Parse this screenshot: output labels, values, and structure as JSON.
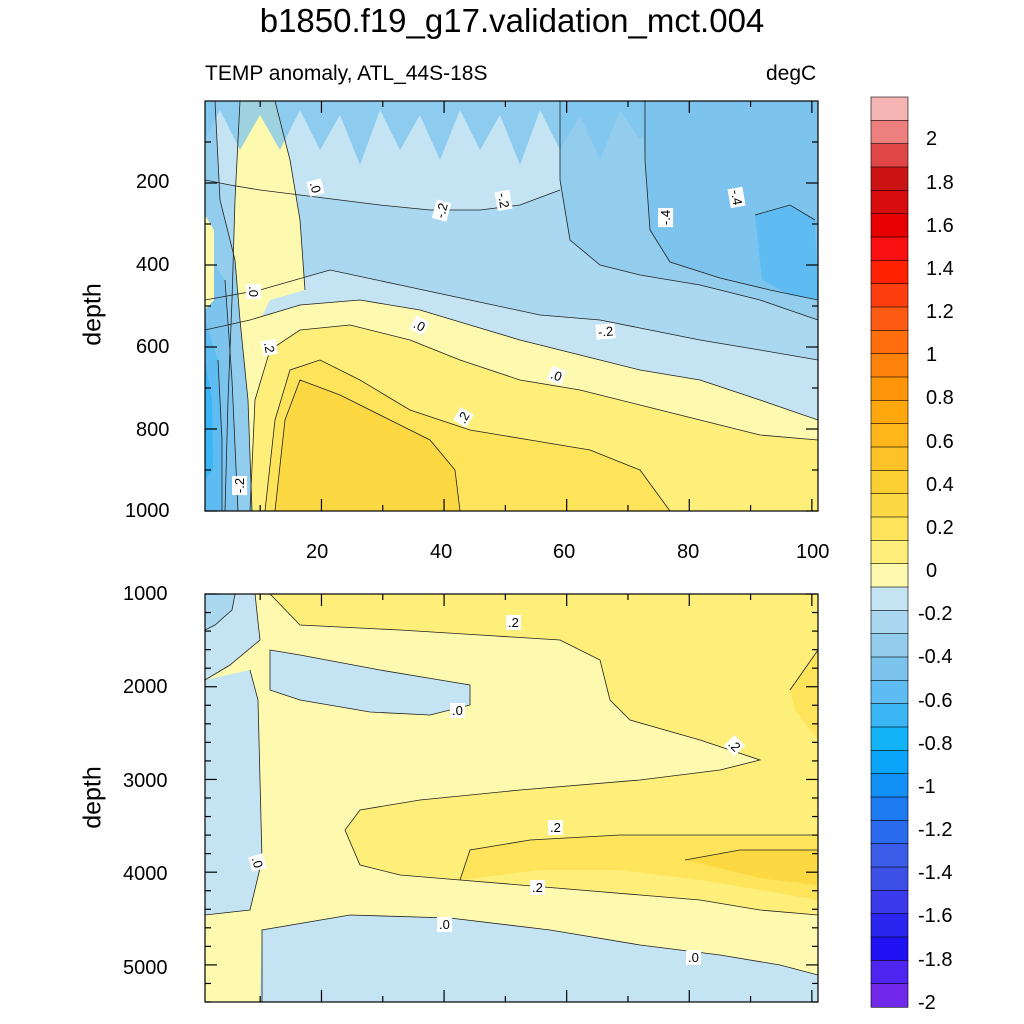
{
  "header": {
    "title": "b1850.f19_g17.validation_mct.004",
    "subtitle": "TEMP anomaly, ATL_44S-18S",
    "units": "degC"
  },
  "chart_data": {
    "type": "heatmap",
    "title": "b1850.f19_g17.validation_mct.004",
    "subtitle": "TEMP anomaly, ATL_44S-18S",
    "units": "degC",
    "panels": [
      {
        "name": "upper",
        "ylabel": "depth",
        "ylim": [
          0,
          1000
        ],
        "y_ticks": [
          "200",
          "400",
          "600",
          "800",
          "1000"
        ],
        "x_ticks": [
          "20",
          "40",
          "60",
          "80",
          "100"
        ],
        "xlim": [
          1,
          101
        ],
        "contour_labels": [
          ".0",
          "-.2",
          "-.2",
          "-.4",
          "-.4",
          ".0",
          ".2",
          ".0",
          "-.2",
          ".0",
          ".2",
          "-.2"
        ]
      },
      {
        "name": "lower",
        "ylabel": "depth",
        "ylim": [
          1000,
          5400
        ],
        "y_ticks": [
          "1000",
          "2000",
          "3000",
          "4000",
          "5000"
        ],
        "xlim": [
          1,
          101
        ],
        "contour_labels": [
          ".2",
          ".0",
          ".2",
          ".2",
          ".2",
          ".0",
          ".0",
          ".0"
        ]
      }
    ],
    "colorbar": {
      "levels": [
        -2,
        -1.8,
        -1.6,
        -1.4,
        -1.2,
        -1,
        -0.8,
        -0.6,
        -0.4,
        -0.2,
        0,
        0.2,
        0.4,
        0.6,
        0.8,
        1,
        1.2,
        1.4,
        1.6,
        1.8,
        2
      ],
      "labels": [
        "2",
        "1.8",
        "1.6",
        "1.4",
        "1.2",
        "1",
        "0.8",
        "0.6",
        "0.4",
        "0.2",
        "0",
        "-0.2",
        "-0.4",
        "-0.6",
        "-0.8",
        "-1",
        "-1.2",
        "-1.4",
        "-1.6",
        "-1.8",
        "-2"
      ],
      "colors_top_to_bottom": [
        "#f4b4b4",
        "#ee7f7f",
        "#e04646",
        "#cc1414",
        "#d70c0c",
        "#e60000",
        "#fa1010",
        "#ff2200",
        "#ff3e10",
        "#fd5a14",
        "#ff6e0c",
        "#ff820a",
        "#ff960a",
        "#ffa70d",
        "#ffb61a",
        "#fdc225",
        "#fbce32",
        "#fcd942",
        "#fde45a",
        "#fdef7a",
        "#fdfab0",
        "#c4e4f4",
        "#aad8f0",
        "#92cdee",
        "#7cc4ee",
        "#5ebcf2",
        "#3ab6f5",
        "#13b4f7",
        "#0aa4f8",
        "#1290f5",
        "#1e7af0",
        "#2a6aee",
        "#3a5ce8",
        "#3c50e6",
        "#3a3aec",
        "#2a26f0",
        "#2010f4",
        "#4e24f0",
        "#7228ea"
      ]
    }
  }
}
